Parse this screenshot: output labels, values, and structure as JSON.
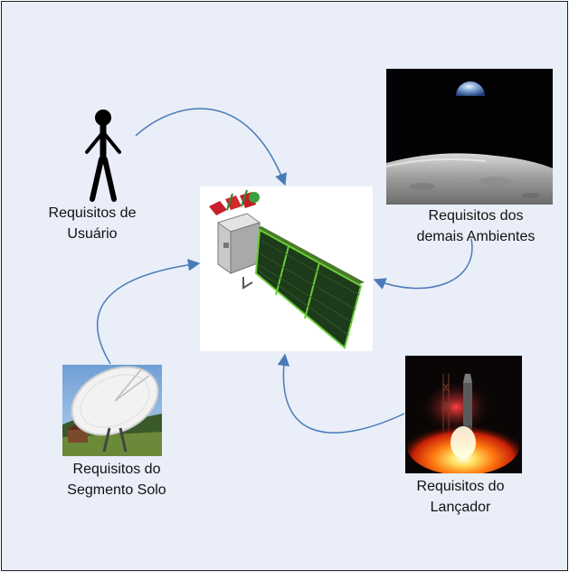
{
  "labels": {
    "user": "Requisitos de\nUsuário",
    "environments": "Requisitos dos\ndemais Ambientes",
    "ground": "Requisitos do\nSegmento Solo",
    "launcher": "Requisitos do\nLançador"
  },
  "icons": {
    "user": "person-stick-figure-icon",
    "environments": "earthrise-photo",
    "ground": "ground-antenna-photo",
    "launcher": "rocket-launch-photo",
    "center": "satellite-image"
  },
  "colors": {
    "background": "#e9eef8",
    "arrow": "#4a7ab8",
    "border": "#202020"
  }
}
